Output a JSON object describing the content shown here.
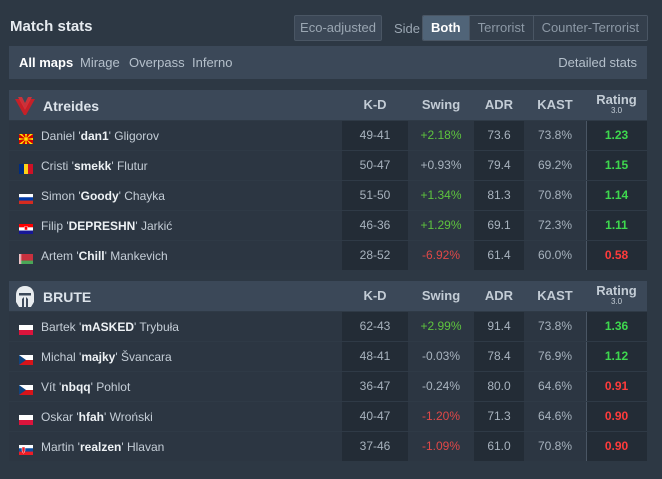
{
  "header": {
    "title": "Match stats",
    "eco_label": "Eco-adjusted",
    "side_label": "Side",
    "side_options": [
      "Both",
      "Terrorist",
      "Counter-Terrorist"
    ]
  },
  "maps": {
    "items": [
      "All maps",
      "Mirage",
      "Overpass",
      "Inferno"
    ],
    "detailed_label": "Detailed stats"
  },
  "columns": {
    "kd": "K-D",
    "swing": "Swing",
    "adr": "ADR",
    "kast": "KAST",
    "rating": "Rating",
    "rating_version": "3.0"
  },
  "teams": [
    {
      "name": "Atreides",
      "logo_icon": "atreides-logo",
      "players": [
        {
          "first": "Daniel '",
          "nick": "dan1",
          "last": "' Gligorov",
          "flag": "macedonia",
          "kd": "49-41",
          "swing": "+2.18%",
          "swing_sign": "pos",
          "adr": "73.6",
          "kast": "73.8%",
          "rating": "1.23",
          "rating_class": "good"
        },
        {
          "first": "Cristi '",
          "nick": "smekk",
          "last": "' Flutur",
          "flag": "romania",
          "kd": "50-47",
          "swing": "+0.93%",
          "swing_sign": "neu",
          "adr": "79.4",
          "kast": "69.2%",
          "rating": "1.15",
          "rating_class": "good"
        },
        {
          "first": "Simon '",
          "nick": "Goody",
          "last": "' Chayka",
          "flag": "russia",
          "kd": "51-50",
          "swing": "+1.34%",
          "swing_sign": "pos",
          "adr": "81.3",
          "kast": "70.8%",
          "rating": "1.14",
          "rating_class": "good"
        },
        {
          "first": "Filip '",
          "nick": "DEPRESHN",
          "last": "' Jarkić",
          "flag": "croatia",
          "kd": "46-36",
          "swing": "+1.29%",
          "swing_sign": "pos",
          "adr": "69.1",
          "kast": "72.3%",
          "rating": "1.11",
          "rating_class": "good"
        },
        {
          "first": "Artem '",
          "nick": "Chill",
          "last": "' Mankevich",
          "flag": "belarus",
          "kd": "28-52",
          "swing": "-6.92%",
          "swing_sign": "neg",
          "adr": "61.4",
          "kast": "60.0%",
          "rating": "0.58",
          "rating_class": "bad"
        }
      ]
    },
    {
      "name": "BRUTE",
      "logo_icon": "brute-logo",
      "players": [
        {
          "first": "Bartek '",
          "nick": "mASKED",
          "last": "' Trybuła",
          "flag": "poland",
          "kd": "62-43",
          "swing": "+2.99%",
          "swing_sign": "pos",
          "adr": "91.4",
          "kast": "73.8%",
          "rating": "1.36",
          "rating_class": "good"
        },
        {
          "first": "Michal '",
          "nick": "majky",
          "last": "' Švancara",
          "flag": "czech",
          "kd": "48-41",
          "swing": "-0.03%",
          "swing_sign": "neu",
          "adr": "78.4",
          "kast": "76.9%",
          "rating": "1.12",
          "rating_class": "good"
        },
        {
          "first": "Vít '",
          "nick": "nbqq",
          "last": "' Pohlot",
          "flag": "czech",
          "kd": "36-47",
          "swing": "-0.24%",
          "swing_sign": "neu",
          "adr": "80.0",
          "kast": "64.6%",
          "rating": "0.91",
          "rating_class": "bad"
        },
        {
          "first": "Oskar '",
          "nick": "hfah",
          "last": "' Wroński",
          "flag": "poland",
          "kd": "40-47",
          "swing": "-1.20%",
          "swing_sign": "neg",
          "adr": "71.3",
          "kast": "64.6%",
          "rating": "0.90",
          "rating_class": "bad"
        },
        {
          "first": "Martin '",
          "nick": "realzen",
          "last": "' Hlavan",
          "flag": "slovakia",
          "kd": "37-46",
          "swing": "-1.09%",
          "swing_sign": "neg",
          "adr": "61.0",
          "kast": "70.8%",
          "rating": "0.90",
          "rating_class": "bad"
        }
      ]
    }
  ]
}
